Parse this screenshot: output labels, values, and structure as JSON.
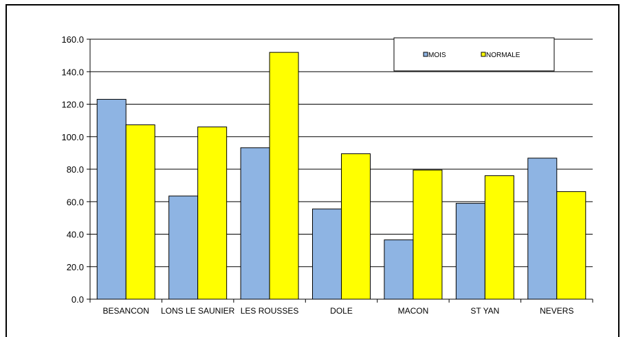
{
  "chart_data": {
    "type": "bar",
    "categories": [
      "BESANCON",
      "LONS LE SAUNIER",
      "LES ROUSSES",
      "DOLE",
      "MACON",
      "ST YAN",
      "NEVERS"
    ],
    "series": [
      {
        "name": "MOIS",
        "values": [
          123,
          63.5,
          93.2,
          55.5,
          36.5,
          59,
          86.8
        ],
        "color": "#8eb4e3"
      },
      {
        "name": "NORMALE",
        "values": [
          107.3,
          106,
          151.9,
          89.5,
          79.5,
          76,
          66.2
        ],
        "color": "#ffff00"
      }
    ],
    "ylim": [
      0,
      160
    ],
    "yticks": [
      "0.0",
      "20.0",
      "40.0",
      "60.0",
      "80.0",
      "100.0",
      "120.0",
      "140.0",
      "160.0"
    ],
    "ytick_values": [
      0,
      20,
      40,
      60,
      80,
      100,
      120,
      140,
      160
    ],
    "grid": true,
    "legend_position": "top-right"
  }
}
